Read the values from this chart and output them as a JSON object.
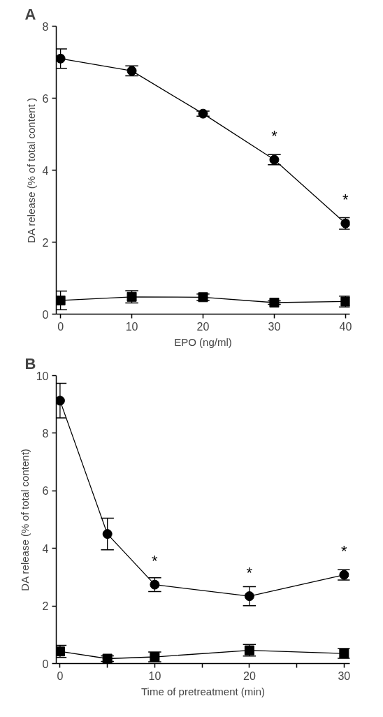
{
  "chart_data": [
    {
      "type": "line",
      "title": "A",
      "xlabel": "EPO (ng/ml)",
      "ylabel": "DA release (% of total content )",
      "x": [
        0,
        10,
        20,
        30,
        40
      ],
      "xlim": [
        -0.6,
        40.6
      ],
      "ylim": [
        0,
        8
      ],
      "xticks": [
        0,
        10,
        20,
        30,
        40
      ],
      "yticks": [
        0,
        2,
        4,
        6,
        8
      ],
      "grid": false,
      "line_style": "solid",
      "series": [
        {
          "marker": "circle",
          "color": "#000000",
          "values": [
            7.1,
            6.76,
            5.57,
            4.29,
            2.52
          ],
          "errors": [
            0.27,
            0.14,
            0.07,
            0.14,
            0.16
          ]
        },
        {
          "marker": "square",
          "color": "#000000",
          "values": [
            0.38,
            0.48,
            0.47,
            0.32,
            0.35
          ],
          "errors": [
            0.26,
            0.17,
            0.09,
            0.05,
            0.15
          ]
        }
      ],
      "annotations": [
        {
          "text": "*",
          "x": 30,
          "y": 4.29
        },
        {
          "text": "*",
          "x": 40,
          "y": 2.52
        }
      ]
    },
    {
      "type": "line",
      "title": "B",
      "xlabel": "Time of pretreatment (min)",
      "ylabel": "DA release (% of total content)",
      "x": [
        0,
        5,
        10,
        20,
        30
      ],
      "xlim": [
        -0.4,
        30.6
      ],
      "ylim": [
        0,
        10
      ],
      "xticks": [
        0,
        {
          "value": 5,
          "label": null
        },
        10,
        {
          "value": 15,
          "label": null
        },
        20,
        {
          "value": 25,
          "label": null
        },
        30
      ],
      "yticks": [
        0,
        2,
        4,
        6,
        8,
        10
      ],
      "grid": false,
      "line_style": "solid",
      "series": [
        {
          "marker": "circle",
          "color": "#000000",
          "values": [
            9.13,
            4.5,
            2.74,
            2.34,
            3.08
          ],
          "errors": [
            0.6,
            0.55,
            0.24,
            0.33,
            0.18
          ]
        },
        {
          "marker": "square",
          "color": "#000000",
          "values": [
            0.42,
            0.17,
            0.23,
            0.46,
            0.35
          ],
          "errors": [
            0.21,
            0.1,
            0.17,
            0.2,
            0.17
          ]
        }
      ],
      "annotations": [
        {
          "text": "*",
          "x": 10,
          "y": 2.74
        },
        {
          "text": "*",
          "x": 20,
          "y": 2.34
        },
        {
          "text": "*",
          "x": 30,
          "y": 3.08
        }
      ]
    }
  ]
}
